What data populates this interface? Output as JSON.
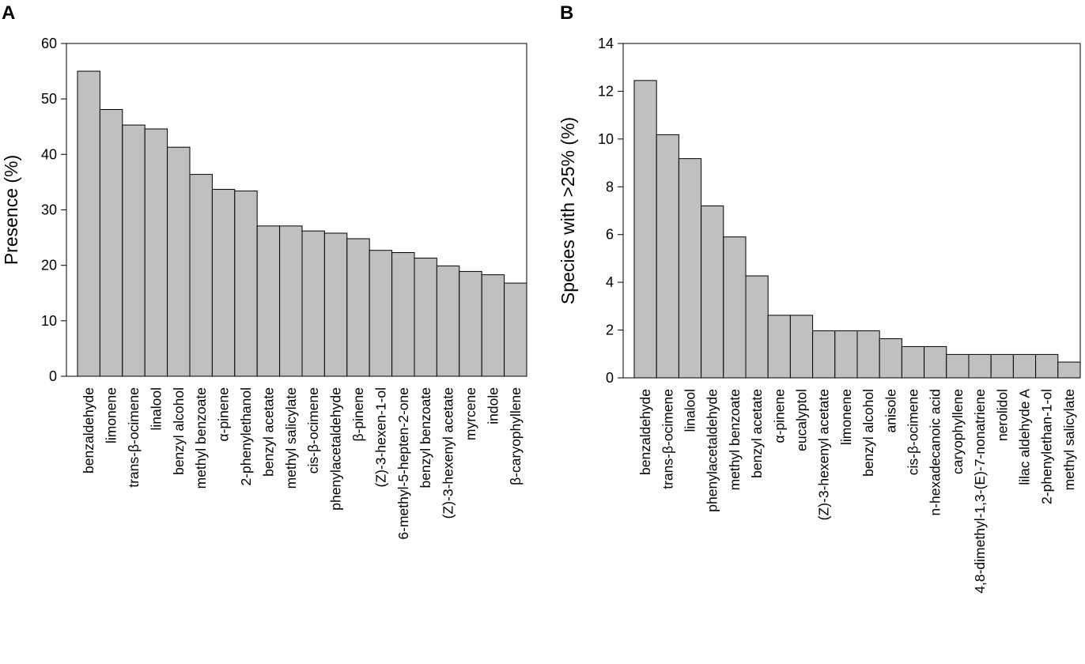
{
  "chart_data": [
    {
      "panel": "A",
      "type": "bar",
      "title": "",
      "xlabel": "",
      "ylabel": "Presence (%)",
      "ylim": [
        0,
        60
      ],
      "yticks": [
        "0",
        "10",
        "20",
        "30",
        "40",
        "50",
        "60"
      ],
      "bar_color": "#c0c0c0",
      "categories": [
        "benzaldehyde",
        "limonene",
        "trans-β-ocimene",
        "linalool",
        "benzyl alcohol",
        "methyl benzoate",
        "α-pinene",
        "2-phenylethanol",
        "benzyl acetate",
        "methyl salicylate",
        "cis-β-ocimene",
        "phenylacetaldehyde",
        "β-pinene",
        "(Z)-3-hexen-1-ol",
        "6-methyl-5-hepten-2-one",
        "benzyl benzoate",
        "(Z)-3-hexenyl acetate",
        "myrcene",
        "indole",
        "β-caryophyllene"
      ],
      "values": [
        55.0,
        48.1,
        45.3,
        44.6,
        41.3,
        36.4,
        33.7,
        33.4,
        27.1,
        27.1,
        26.2,
        25.8,
        24.8,
        22.7,
        22.3,
        21.3,
        19.9,
        18.9,
        18.3,
        16.8
      ]
    },
    {
      "panel": "B",
      "type": "bar",
      "title": "",
      "xlabel": "",
      "ylabel": "Species with >25% (%)",
      "ylim": [
        0,
        14
      ],
      "yticks": [
        "0",
        "2",
        "4",
        "6",
        "8",
        "10",
        "12",
        "14"
      ],
      "bar_color": "#c0c0c0",
      "categories": [
        "benzaldehyde",
        "trans-β-ocimene",
        "linalool",
        "phenylacetaldehyde",
        "methyl benzoate",
        "benzyl acetate",
        "α-pinene",
        "eucalyptol",
        "(Z)-3-hexenyl acetate",
        "limonene",
        "benzyl alcohol",
        "anisole",
        "cis-β-ocimene",
        "n-hexadecanoic acid",
        "caryophyllene",
        "4,8-dimethyl-1,3-(E)-7-nonatriene",
        "nerolidol",
        "lilac aldehyde A",
        "2-phenylethan-1-ol",
        "methyl salicylate"
      ],
      "values": [
        12.45,
        10.18,
        9.18,
        7.2,
        5.9,
        4.27,
        2.62,
        2.62,
        1.97,
        1.97,
        1.97,
        1.64,
        1.31,
        1.31,
        0.98,
        0.98,
        0.98,
        0.98,
        0.98,
        0.66
      ]
    }
  ]
}
